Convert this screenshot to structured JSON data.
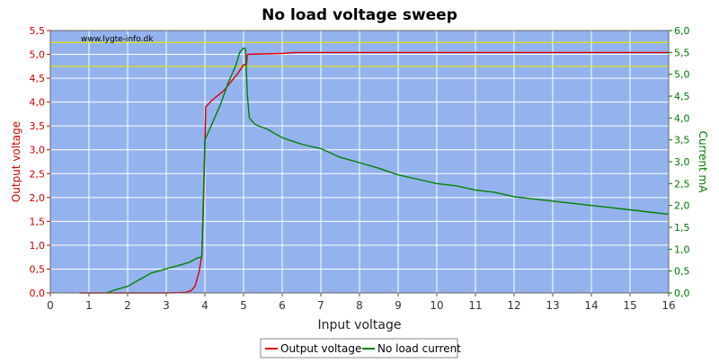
{
  "chart_data": {
    "type": "line",
    "title": "No load voltage sweep",
    "watermark": "www.lygte-info.dk",
    "xlabel": "Input voltage",
    "ylabel_left": "Output voltage",
    "ylabel_right": "Current mA",
    "xlim": [
      0,
      16
    ],
    "ylim_left": [
      0,
      5.5
    ],
    "ylim_right": [
      0,
      6.0
    ],
    "x_ticks": [
      "0",
      "1",
      "2",
      "3",
      "4",
      "5",
      "6",
      "7",
      "8",
      "9",
      "10",
      "11",
      "12",
      "13",
      "14",
      "15",
      "16"
    ],
    "y_left_ticks": [
      "0,0",
      "0,5",
      "1,0",
      "1,5",
      "2,0",
      "2,5",
      "3,0",
      "3,5",
      "4,0",
      "4,5",
      "5,0",
      "5,5"
    ],
    "y_right_ticks": [
      "0,0",
      "0,5",
      "1,0",
      "1,5",
      "2,0",
      "2,5",
      "3,0",
      "3,5",
      "4,0",
      "4,5",
      "5,0",
      "5,5",
      "6,0"
    ],
    "grid": true,
    "legend_position": "bottom-center",
    "reference_lines_left": [
      5.25,
      4.75
    ],
    "colors": {
      "plot_background": "#94b3ee",
      "grid": "#ffffff",
      "reference_line": "#e4e400",
      "output_voltage": "#dd0000",
      "no_load_current": "#008000",
      "left_axis": "#cc0000",
      "right_axis": "#007700"
    },
    "series": [
      {
        "name": "Output voltage",
        "axis": "left",
        "color": "#dd0000",
        "points": [
          [
            0.75,
            0.0
          ],
          [
            1.5,
            0.0
          ],
          [
            2.0,
            0.0
          ],
          [
            3.0,
            0.0
          ],
          [
            3.5,
            0.01
          ],
          [
            3.65,
            0.05
          ],
          [
            3.75,
            0.15
          ],
          [
            3.85,
            0.45
          ],
          [
            3.92,
            0.8
          ],
          [
            3.97,
            2.0
          ],
          [
            4.02,
            3.9
          ],
          [
            4.2,
            4.05
          ],
          [
            4.5,
            4.25
          ],
          [
            4.7,
            4.45
          ],
          [
            4.85,
            4.6
          ],
          [
            5.0,
            4.78
          ],
          [
            5.08,
            4.8
          ],
          [
            5.1,
            5.0
          ],
          [
            5.5,
            5.01
          ],
          [
            6.0,
            5.02
          ],
          [
            6.35,
            5.04
          ],
          [
            8.0,
            5.04
          ],
          [
            10.0,
            5.04
          ],
          [
            12.0,
            5.04
          ],
          [
            14.0,
            5.04
          ],
          [
            16.0,
            5.04
          ]
        ]
      },
      {
        "name": "No load current",
        "axis": "right",
        "color": "#008000",
        "points": [
          [
            1.45,
            0.0
          ],
          [
            1.6,
            0.05
          ],
          [
            1.8,
            0.1
          ],
          [
            2.0,
            0.15
          ],
          [
            2.2,
            0.25
          ],
          [
            2.4,
            0.35
          ],
          [
            2.6,
            0.45
          ],
          [
            2.8,
            0.5
          ],
          [
            3.0,
            0.55
          ],
          [
            3.2,
            0.6
          ],
          [
            3.4,
            0.65
          ],
          [
            3.6,
            0.7
          ],
          [
            3.8,
            0.8
          ],
          [
            3.92,
            0.82
          ],
          [
            4.0,
            3.5
          ],
          [
            4.1,
            3.7
          ],
          [
            4.2,
            3.9
          ],
          [
            4.4,
            4.3
          ],
          [
            4.6,
            4.8
          ],
          [
            4.8,
            5.2
          ],
          [
            4.9,
            5.5
          ],
          [
            5.0,
            5.6
          ],
          [
            5.05,
            5.58
          ],
          [
            5.1,
            4.5
          ],
          [
            5.15,
            4.0
          ],
          [
            5.3,
            3.85
          ],
          [
            5.6,
            3.75
          ],
          [
            6.0,
            3.55
          ],
          [
            6.5,
            3.4
          ],
          [
            7.0,
            3.3
          ],
          [
            7.5,
            3.1
          ],
          [
            8.0,
            2.98
          ],
          [
            8.5,
            2.85
          ],
          [
            9.0,
            2.7
          ],
          [
            9.5,
            2.6
          ],
          [
            10.0,
            2.5
          ],
          [
            10.5,
            2.45
          ],
          [
            11.0,
            2.35
          ],
          [
            11.5,
            2.3
          ],
          [
            12.0,
            2.2
          ],
          [
            12.5,
            2.15
          ],
          [
            13.0,
            2.1
          ],
          [
            13.5,
            2.05
          ],
          [
            14.0,
            2.0
          ],
          [
            14.5,
            1.95
          ],
          [
            15.0,
            1.9
          ],
          [
            15.5,
            1.85
          ],
          [
            16.0,
            1.8
          ]
        ]
      }
    ]
  }
}
